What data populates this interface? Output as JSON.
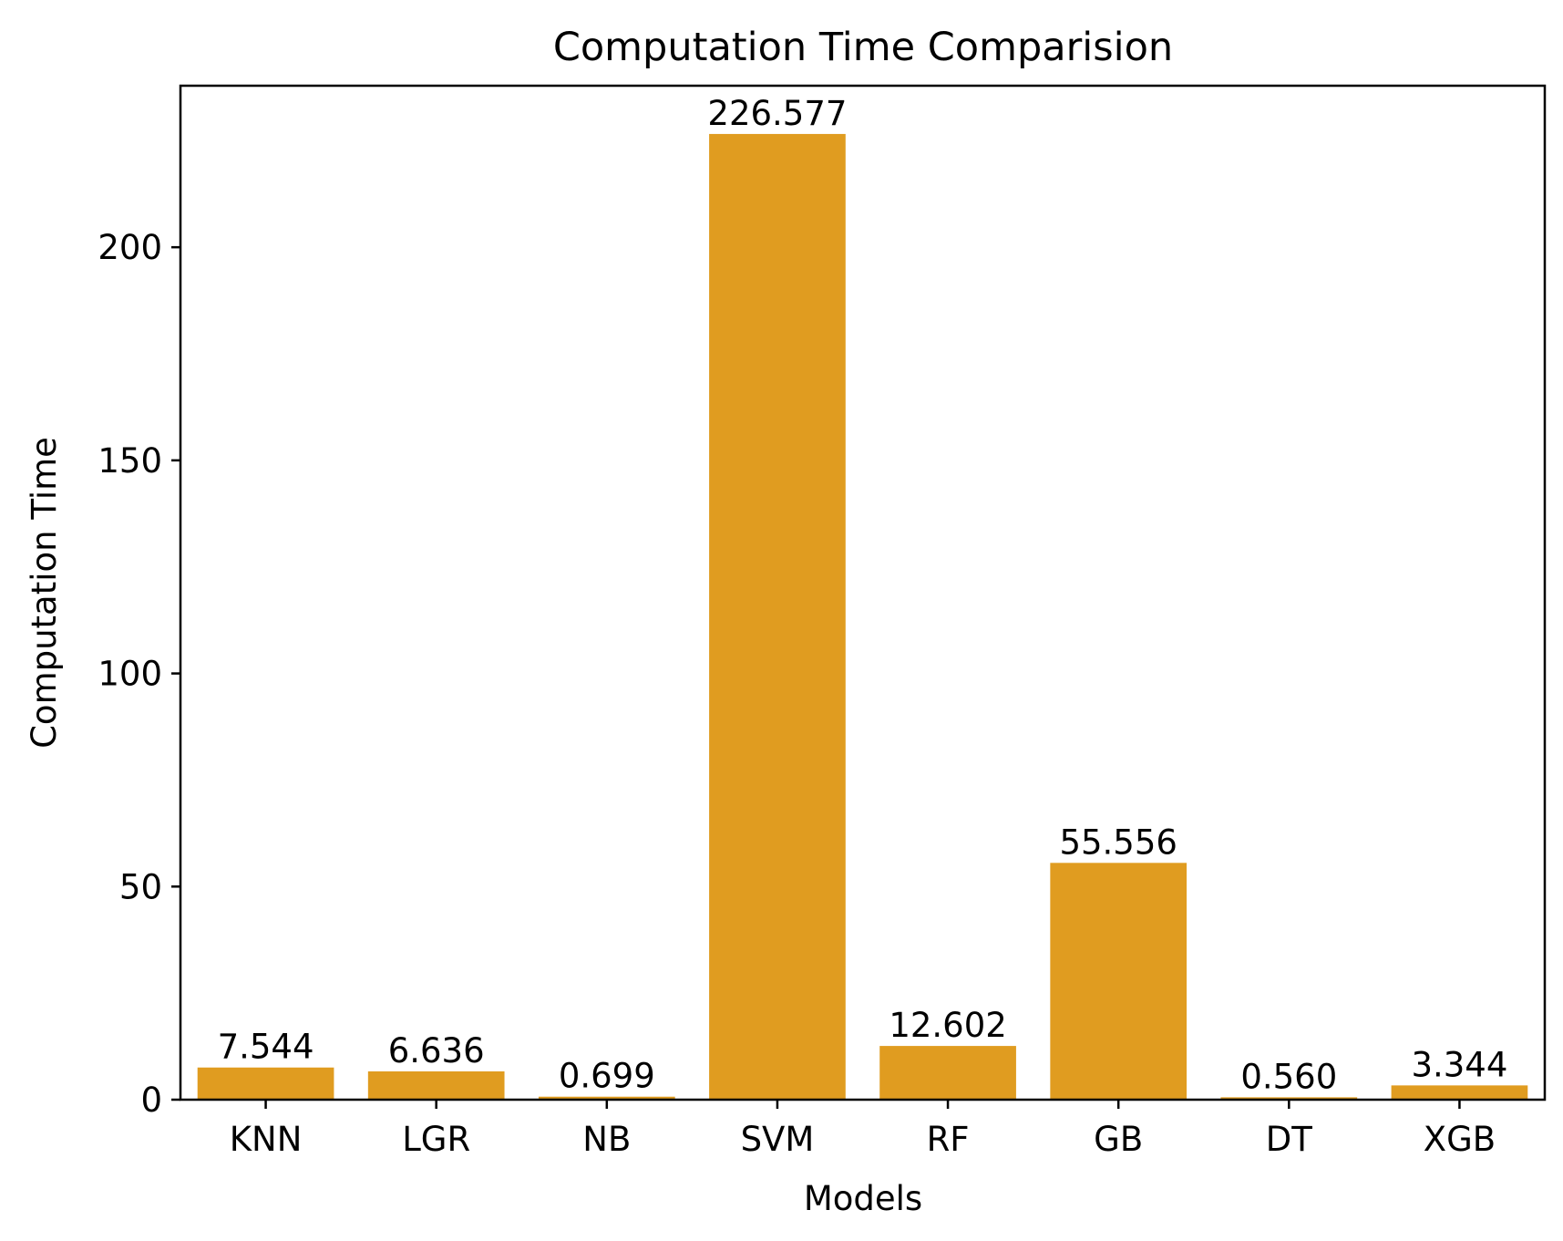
{
  "chart_data": {
    "type": "bar",
    "title": "Computation Time Comparision",
    "xlabel": "Models",
    "ylabel": "Computation Time",
    "categories": [
      "KNN",
      "LGR",
      "NB",
      "SVM",
      "RF",
      "GB",
      "DT",
      "XGB"
    ],
    "values": [
      7.544,
      6.636,
      0.699,
      226.577,
      12.602,
      55.556,
      0.56,
      3.344
    ],
    "data_labels": [
      "7.544",
      "6.636",
      "0.699",
      "226.577",
      "12.602",
      "55.556",
      "0.560",
      "3.344"
    ],
    "yticks": [
      0,
      50,
      100,
      150,
      200
    ],
    "ylim": [
      0,
      237.9
    ],
    "bar_color": "#e09c20",
    "grid": false
  }
}
